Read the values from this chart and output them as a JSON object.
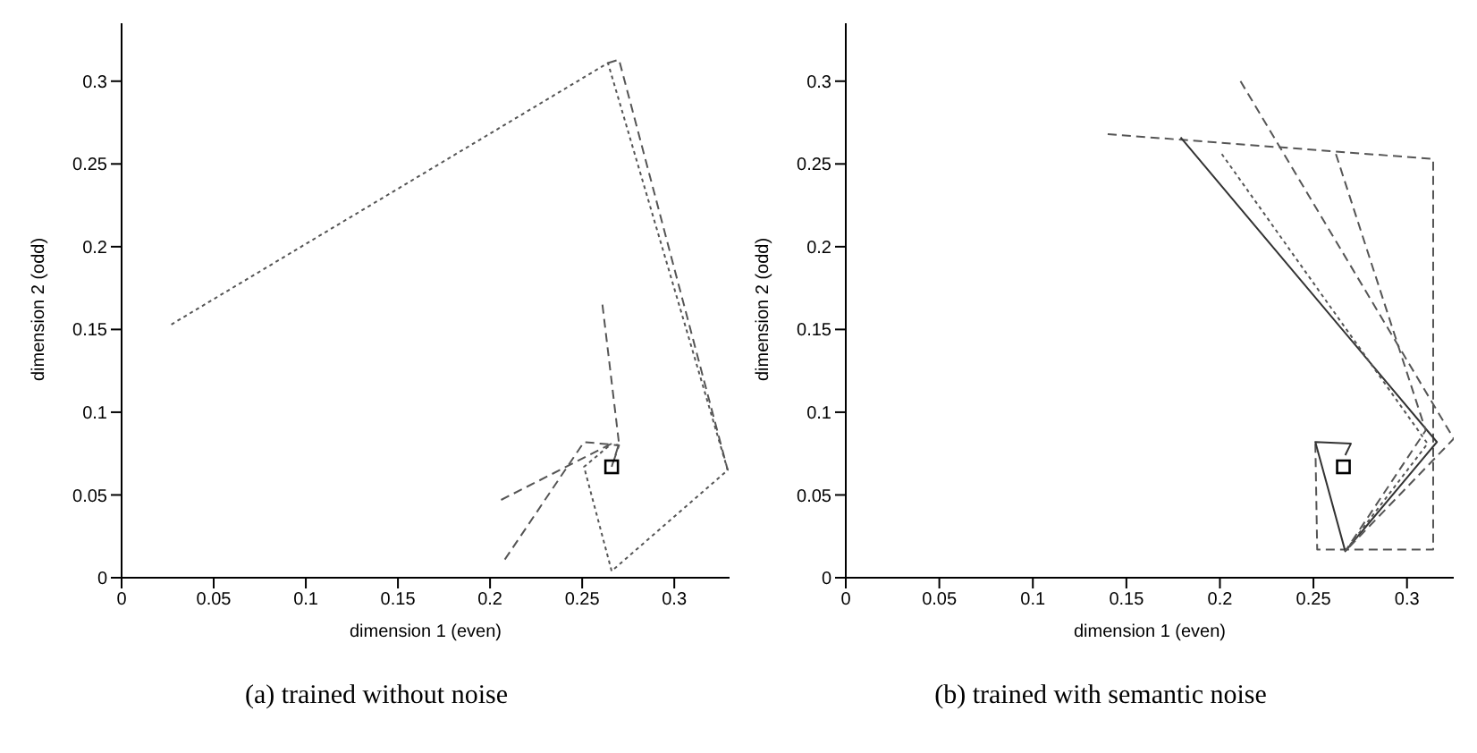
{
  "chart_data": [
    {
      "type": "line",
      "title": "(a) trained without noise",
      "xlabel": "dimension 1 (even)",
      "ylabel": "dimension 2 (odd)",
      "xlim": [
        0,
        0.33
      ],
      "ylim": [
        0,
        0.335
      ],
      "xticks": [
        0,
        0.05,
        0.1,
        0.15,
        0.2,
        0.25,
        0.3
      ],
      "yticks": [
        0,
        0.05,
        0.1,
        0.15,
        0.2,
        0.25,
        0.3
      ],
      "grid": false,
      "legend": false,
      "marker": "none",
      "series": [
        {
          "color": "#555555",
          "line_style": "dotted",
          "x": [
            0.027,
            0.264,
            0.329,
            0.266,
            0.251,
            0.266
          ],
          "values": [
            0.153,
            0.311,
            0.065,
            0.004,
            0.067,
            0.081
          ]
        },
        {
          "color": "#555555",
          "line_style": "dashed",
          "x": [
            0.264,
            0.27,
            0.329
          ],
          "values": [
            0.311,
            0.313,
            0.065
          ]
        },
        {
          "color": "#555555",
          "line_style": "dashed",
          "x": [
            0.261,
            0.27,
            0.266
          ],
          "values": [
            0.165,
            0.081,
            0.067
          ]
        },
        {
          "color": "#555555",
          "line_style": "dashed",
          "x": [
            0.206,
            0.266,
            0.27
          ],
          "values": [
            0.047,
            0.081,
            0.08
          ]
        },
        {
          "color": "#555555",
          "line_style": "dashed",
          "x": [
            0.208,
            0.251,
            0.27,
            0.266
          ],
          "values": [
            0.011,
            0.082,
            0.08,
            0.067
          ]
        },
        {
          "type": "scatter",
          "marker": "square",
          "color": "#000000",
          "x": [
            0.266
          ],
          "values": [
            0.067
          ]
        }
      ]
    },
    {
      "type": "line",
      "title": "(b) trained with semantic noise",
      "xlabel": "dimension 1 (even)",
      "ylabel": "dimension 2 (odd)",
      "xlim": [
        0,
        0.325
      ],
      "ylim": [
        0,
        0.335
      ],
      "xticks": [
        0,
        0.05,
        0.1,
        0.15,
        0.2,
        0.25,
        0.3
      ],
      "yticks": [
        0,
        0.05,
        0.1,
        0.15,
        0.2,
        0.25,
        0.3
      ],
      "grid": false,
      "legend": false,
      "marker": "none",
      "series": [
        {
          "color": "#555555",
          "line_style": "dashed",
          "x": [
            0.14,
            0.314,
            0.314,
            0.252,
            0.251
          ],
          "values": [
            0.268,
            0.253,
            0.017,
            0.017,
            0.082
          ]
        },
        {
          "color": "#333333",
          "line_style": "solid",
          "x": [
            0.179,
            0.316,
            0.267,
            0.251,
            0.27,
            0.267
          ],
          "values": [
            0.266,
            0.082,
            0.016,
            0.082,
            0.081,
            0.074
          ]
        },
        {
          "color": "#555555",
          "line_style": "dotted",
          "x": [
            0.201,
            0.311,
            0.267
          ],
          "values": [
            0.256,
            0.081,
            0.016
          ]
        },
        {
          "color": "#555555",
          "line_style": "dashed",
          "x": [
            0.211,
            0.325,
            0.267
          ],
          "values": [
            0.3,
            0.084,
            0.016
          ]
        },
        {
          "color": "#555555",
          "line_style": "dashed",
          "x": [
            0.262,
            0.31,
            0.267
          ],
          "values": [
            0.256,
            0.089,
            0.016
          ]
        },
        {
          "type": "scatter",
          "marker": "square",
          "color": "#000000",
          "x": [
            0.266
          ],
          "values": [
            0.067
          ]
        }
      ]
    }
  ]
}
